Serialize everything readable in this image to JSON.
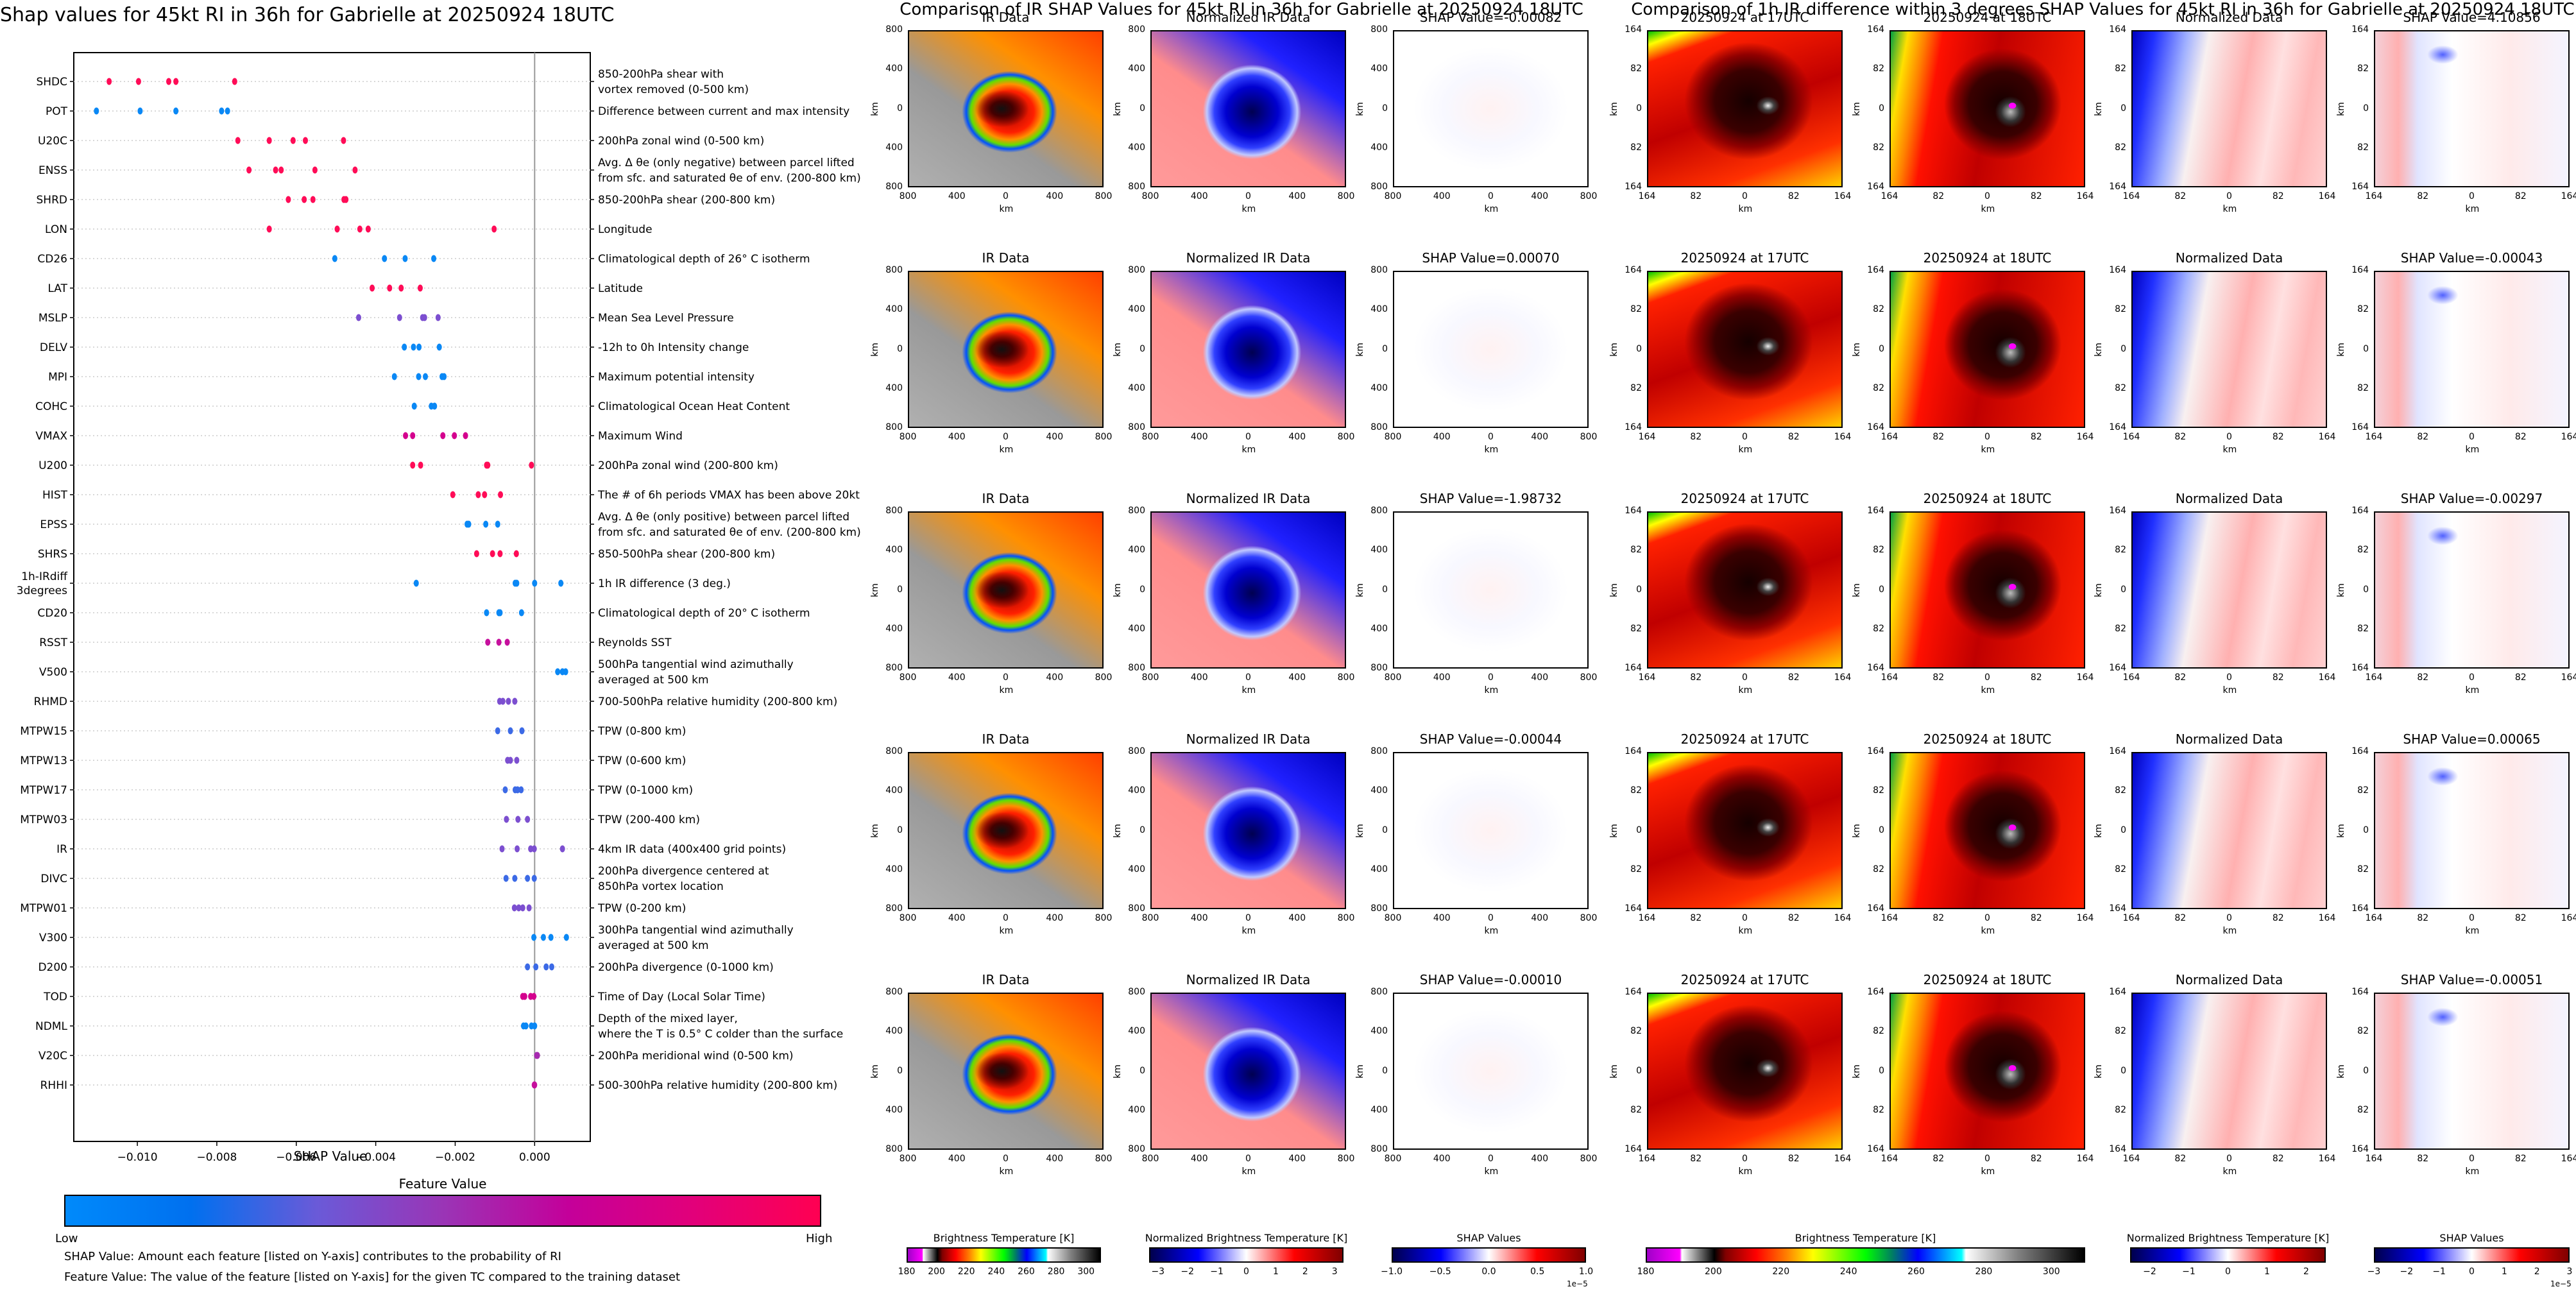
{
  "left": {
    "title": "Shap values for 45kt RI in 36h for Gabrielle at 20250924 18UTC",
    "xlabel": "SHAP Value",
    "colorbar": {
      "title": "Feature Value",
      "low": "Low",
      "high": "High",
      "stops": [
        "#008afb",
        "#0070ef",
        "#6a5ad8",
        "#9a35b6",
        "#c4009a",
        "#e2007a",
        "#ff0052"
      ]
    },
    "notes": [
      "SHAP Value: Amount each feature [listed on Y-axis] contributes to the probability of RI",
      "Feature Value: The value of the feature [listed on Y-axis] for the given TC compared to the training dataset"
    ]
  },
  "chart_data": [
    {
      "type": "scatter",
      "title": "Shap values for 45kt RI in 36h for Gabrielle at 20250924 18UTC",
      "xlabel": "SHAP Value",
      "ylabel": "",
      "xlim": [
        -0.0116,
        0.0014
      ],
      "xticks": [
        -0.01,
        -0.008,
        -0.006,
        -0.004,
        -0.002,
        0.0
      ],
      "xtick_labels": [
        "−0.010",
        "−0.008",
        "−0.006",
        "−0.004",
        "−0.002",
        "0.000"
      ],
      "vline_at": 0.0,
      "grid": "horizontal dotted",
      "color_scale": "Feature Value (Low=blue, High=red/magenta)",
      "features": [
        {
          "name": "SHDC",
          "desc": [
            "850-200hPa shear with",
            "vortex removed (0-500 km)"
          ],
          "color": "#ff0c57",
          "values": [
            -0.01071,
            -0.00997,
            -0.00921,
            -0.00903,
            -0.00755
          ]
        },
        {
          "name": "POT",
          "desc": [
            "Difference between current and max intensity"
          ],
          "color": "#0a88f5",
          "values": [
            -0.01103,
            -0.00993,
            -0.00903,
            -0.00788,
            -0.00773
          ]
        },
        {
          "name": "U20C",
          "desc": [
            "200hPa zonal wind (0-500 km)"
          ],
          "color": "#ff0c57",
          "values": [
            -0.00747,
            -0.00668,
            -0.00608,
            -0.00577,
            -0.00481
          ]
        },
        {
          "name": "ENSS",
          "desc": [
            "Avg. Δ θe (only negative) between parcel lifted",
            "from sfc. and saturated θe of env. (200-800 km)"
          ],
          "color": "#ff0c57",
          "values": [
            -0.00719,
            -0.00652,
            -0.00638,
            -0.00553,
            -0.00452
          ]
        },
        {
          "name": "SHRD",
          "desc": [
            "850-200hPa shear (200-800 km)"
          ],
          "color": "#ff0c57",
          "values": [
            -0.0062,
            -0.0058,
            -0.00558,
            -0.0048,
            -0.00475
          ]
        },
        {
          "name": "LON",
          "desc": [
            "Longitude"
          ],
          "color": "#ff0c57",
          "values": [
            -0.00668,
            -0.00497,
            -0.0044,
            -0.00419,
            -0.00102
          ]
        },
        {
          "name": "CD26",
          "desc": [
            "Climatological depth of 26° C isotherm"
          ],
          "color": "#0a88f5",
          "values": [
            -0.00503,
            -0.00378,
            -0.00326,
            -0.00254
          ]
        },
        {
          "name": "LAT",
          "desc": [
            "Latitude"
          ],
          "color": "#ff0c57",
          "values": [
            -0.00409,
            -0.00365,
            -0.00336,
            -0.00288
          ]
        },
        {
          "name": "MSLP",
          "desc": [
            "Mean Sea Level Pressure"
          ],
          "color": "#7c4fd0",
          "values": [
            -0.00443,
            -0.0034,
            -0.00282,
            -0.00277,
            -0.00243
          ]
        },
        {
          "name": "DELV",
          "desc": [
            "-12h to 0h Intensity change"
          ],
          "color": "#0a88f5",
          "values": [
            -0.00328,
            -0.00305,
            -0.00291,
            -0.0024
          ]
        },
        {
          "name": "MPI",
          "desc": [
            "Maximum potential intensity"
          ],
          "color": "#0a88f5",
          "values": [
            -0.00353,
            -0.00292,
            -0.00275,
            -0.00233,
            -0.00228
          ]
        },
        {
          "name": "COHC",
          "desc": [
            "Climatological Ocean Heat Content"
          ],
          "color": "#0a88f5",
          "values": [
            -0.00303,
            -0.0026,
            -0.00252
          ]
        },
        {
          "name": "VMAX",
          "desc": [
            "Maximum Wind"
          ],
          "color": "#d4008e",
          "values": [
            -0.00325,
            -0.00307,
            -0.00231,
            -0.00202,
            -0.00174
          ]
        },
        {
          "name": "U200",
          "desc": [
            "200hPa zonal wind (200-800 km)"
          ],
          "color": "#ff0c57",
          "values": [
            -0.00307,
            -0.00287,
            -0.00121,
            -0.00118,
            -8e-05
          ]
        },
        {
          "name": "HIST",
          "desc": [
            "The # of 6h periods VMAX has been above 20kt"
          ],
          "color": "#ff0c57",
          "values": [
            -0.00206,
            -0.00142,
            -0.00126,
            -0.00086
          ]
        },
        {
          "name": "EPSS",
          "desc": [
            "Avg. Δ θe (only positive) between parcel lifted",
            "from sfc. and saturated θe of env. (200-800 km)"
          ],
          "color": "#0a88f5",
          "values": [
            -0.0017,
            -0.00166,
            -0.00123,
            -0.00093
          ]
        },
        {
          "name": "SHRS",
          "desc": [
            "850-500hPa shear (200-800 km)"
          ],
          "color": "#ff0c57",
          "values": [
            -0.00146,
            -0.00106,
            -0.00087,
            -0.00046
          ]
        },
        {
          "name": "1h-IRdiff\n3degrees",
          "desc": [
            "1h IR difference (3 deg.)"
          ],
          "color": "#0a88f5",
          "values": [
            -0.00298,
            -0.00049,
            -0.00045,
            0.0,
            0.00066
          ]
        },
        {
          "name": "CD20",
          "desc": [
            "Climatological depth of 20° C isotherm"
          ],
          "color": "#0a88f5",
          "values": [
            -0.00121,
            -0.0009,
            -0.00087,
            -0.00033
          ]
        },
        {
          "name": "RSST",
          "desc": [
            "Reynolds SST"
          ],
          "color": "#c6109d",
          "values": [
            -0.00118,
            -0.0009,
            -0.00069
          ]
        },
        {
          "name": "V500",
          "desc": [
            "500hPa tangential wind azimuthally",
            "averaged at 500 km"
          ],
          "color": "#0a88f5",
          "values": [
            0.00058,
            0.0007,
            0.00078
          ]
        },
        {
          "name": "RHMD",
          "desc": [
            "700-500hPa relative humidity (200-800 km)"
          ],
          "color": "#7c4fd0",
          "values": [
            -0.00088,
            -0.0008,
            -0.00066,
            -0.0005
          ]
        },
        {
          "name": "MTPW15",
          "desc": [
            "TPW (0-800 km)"
          ],
          "color": "#3c6ae6",
          "values": [
            -0.00093,
            -0.00061,
            -0.00032
          ]
        },
        {
          "name": "MTPW13",
          "desc": [
            "TPW (0-600 km)"
          ],
          "color": "#7c4fd0",
          "values": [
            -0.00068,
            -0.00061,
            -0.00045
          ]
        },
        {
          "name": "MTPW17",
          "desc": [
            "TPW (0-1000 km)"
          ],
          "color": "#3c6ae6",
          "values": [
            -0.00074,
            -0.00049,
            -0.00043,
            -0.00034
          ]
        },
        {
          "name": "MTPW03",
          "desc": [
            "TPW (200-400 km)"
          ],
          "color": "#7c4fd0",
          "values": [
            -0.00071,
            -0.00042,
            -0.00018
          ]
        },
        {
          "name": "IR",
          "desc": [
            "4km IR data (400x400 grid points)"
          ],
          "color": "#7c4fd0",
          "values": [
            -0.00082,
            -0.00044,
            -0.0001,
            -1e-05,
            0.0007
          ]
        },
        {
          "name": "DIVC",
          "desc": [
            "200hPa divergence centered at",
            "850hPa vortex location"
          ],
          "color": "#3c6ae6",
          "values": [
            -0.00072,
            -0.0005,
            -0.00018,
            -1e-05
          ]
        },
        {
          "name": "MTPW01",
          "desc": [
            "TPW (0-200 km)"
          ],
          "color": "#7c4fd0",
          "values": [
            -0.00051,
            -0.0004,
            -0.0003,
            -0.00014
          ]
        },
        {
          "name": "V300",
          "desc": [
            "300hPa tangential wind azimuthally",
            "averaged at 500 km"
          ],
          "color": "#0a88f5",
          "values": [
            -2e-05,
            0.00022,
            0.00041,
            0.0008
          ]
        },
        {
          "name": "D200",
          "desc": [
            "200hPa divergence (0-1000 km)"
          ],
          "color": "#3c6ae6",
          "values": [
            -0.00018,
            3e-05,
            0.00029,
            0.00043
          ]
        },
        {
          "name": "TOD",
          "desc": [
            "Time of Day (Local Solar Time)"
          ],
          "color": "#d4008e",
          "values": [
            -0.0003,
            -0.00025,
            -0.0001,
            -2e-05
          ]
        },
        {
          "name": "NDML",
          "desc": [
            "Depth of the mixed layer,",
            "where the T is 0.5° C colder than the surface"
          ],
          "color": "#0a88f5",
          "values": [
            -0.00028,
            -0.00022,
            -8e-05,
            0.0
          ]
        },
        {
          "name": "V20C",
          "desc": [
            "200hPa meridional wind (0-500 km)"
          ],
          "color": "#a62ab0",
          "values": [
            5e-05,
            7e-05
          ]
        },
        {
          "name": "RHHI",
          "desc": [
            "500-300hPa relative humidity (200-800 km)"
          ],
          "color": "#c6109d",
          "values": [
            -1e-05,
            0.0
          ]
        }
      ]
    },
    {
      "type": "heatmap",
      "title": "Comparison of IR SHAP Values for 45kt RI in 36h for Gabrielle at 20250924 18UTC",
      "columns": [
        "IR Data",
        "Normalized IR Data",
        "SHAP Value"
      ],
      "shap_values": [
        "-0.00082",
        "0.00070",
        "-1.98732",
        "-0.00044",
        "-0.00010"
      ],
      "xticks": [
        "800",
        "400",
        "0",
        "400",
        "800"
      ],
      "yticks": [
        "800",
        "400",
        "0",
        "400",
        "800"
      ],
      "xlabel": "km",
      "ylabel": "km",
      "colorbars": [
        {
          "title": "Brightness Temperature [K]",
          "ticks": [
            "180",
            "200",
            "220",
            "240",
            "260",
            "280",
            "300"
          ],
          "range": [
            180,
            310
          ]
        },
        {
          "title": "Normalized Brightness Temperature [K]",
          "ticks": [
            "−3",
            "−2",
            "−1",
            "0",
            "1",
            "2",
            "3"
          ],
          "range": [
            -3.3,
            3.3
          ]
        },
        {
          "title": "SHAP Values",
          "ticks": [
            "−1.0",
            "−0.5",
            "0.0",
            "0.5",
            "1.0"
          ],
          "range": [
            -1.0,
            1.0
          ],
          "multiplier": "1e−5"
        }
      ]
    },
    {
      "type": "heatmap",
      "title": "Comparison of 1h IR difference within 3 degrees SHAP Values for 45kt RI in 36h for Gabrielle at 20250924 18UTC",
      "columns": [
        "20250924 at 17UTC",
        "20250924 at 18UTC",
        "Normalized Data",
        "SHAP Value"
      ],
      "shap_values": [
        "4.10856",
        "-0.00043",
        "-0.00297",
        "0.00065",
        "-0.00051"
      ],
      "xticks": [
        "164",
        "82",
        "0",
        "82",
        "164"
      ],
      "yticks": [
        "164",
        "82",
        "0",
        "82",
        "164"
      ],
      "xlabel": "km",
      "ylabel": "km",
      "colorbars": [
        {
          "title": "Brightness Temperature [K]",
          "ticks": [
            "180",
            "200",
            "220",
            "240",
            "260",
            "280",
            "300"
          ],
          "range": [
            180,
            310
          ]
        },
        {
          "title": "Normalized Brightness Temperature [K]",
          "ticks": [
            "−2",
            "−1",
            "0",
            "1",
            "2"
          ],
          "range": [
            -2.5,
            2.5
          ]
        },
        {
          "title": "SHAP Values",
          "ticks": [
            "−3",
            "−2",
            "−1",
            "0",
            "1",
            "2",
            "3"
          ],
          "range": [
            -3,
            3
          ],
          "multiplier": "1e−5"
        }
      ]
    }
  ],
  "middle": {
    "title": "Comparison of IR SHAP Values for 45kt RI in 36h for Gabrielle at 20250924 18UTC",
    "col_titles": [
      "IR Data",
      "Normalized IR Data"
    ],
    "shap_prefix": "SHAP Value=",
    "km": "km"
  },
  "right": {
    "title": "Comparison of 1h IR difference within 3 degrees SHAP Values for 45kt RI in 36h for Gabrielle at 20250924 18UTC",
    "col_titles": [
      "20250924 at 17UTC",
      "20250924 at 18UTC",
      "Normalized Data"
    ],
    "shap_prefix": "SHAP Value=",
    "km": "km"
  },
  "colors": {
    "bt_stops": [
      "#a000c8",
      "#ff00ff",
      "#ffffff",
      "#000000",
      "#800000",
      "#ff0000",
      "#ff8000",
      "#ffff00",
      "#00ff00",
      "#008060",
      "#0000ff",
      "#00ffff",
      "#ffffff",
      "#808080",
      "#000000"
    ],
    "seismic": [
      "#00004c",
      "#0000ff",
      "#ffffff",
      "#ff0000",
      "#800000"
    ]
  }
}
